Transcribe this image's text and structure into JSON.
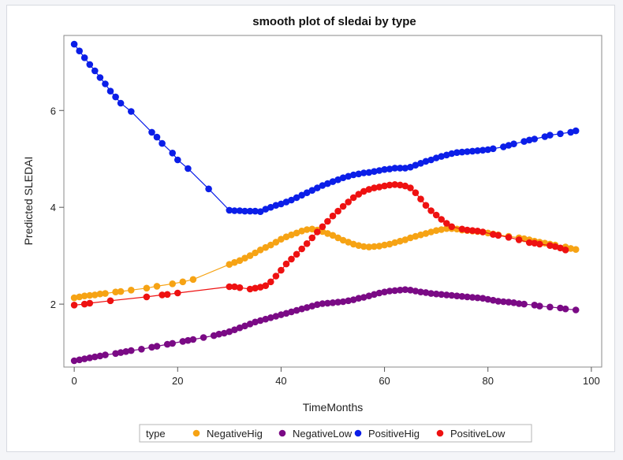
{
  "chart_data": {
    "type": "line",
    "title": "smooth plot of sledai by type",
    "xlabel": "TimeMonths",
    "ylabel": "Predicted SLEDAI",
    "xlim": [
      -2,
      102
    ],
    "ylim": [
      0.7,
      7.55
    ],
    "xticks": [
      "0",
      "20",
      "40",
      "60",
      "80",
      "100"
    ],
    "yticks": [
      "2",
      "4",
      "6"
    ],
    "legend_title": "type",
    "series": [
      {
        "name": "NegativeHig",
        "color": "#f6a314",
        "points": [
          [
            0,
            2.13
          ],
          [
            1,
            2.15
          ],
          [
            2,
            2.17
          ],
          [
            3,
            2.18
          ],
          [
            4,
            2.19
          ],
          [
            5,
            2.21
          ],
          [
            6,
            2.22
          ],
          [
            8,
            2.25
          ],
          [
            9,
            2.26
          ],
          [
            11,
            2.29
          ],
          [
            14,
            2.33
          ],
          [
            16,
            2.37
          ],
          [
            19,
            2.42
          ],
          [
            21,
            2.46
          ],
          [
            23,
            2.51
          ],
          [
            30,
            2.82
          ],
          [
            31,
            2.86
          ],
          [
            32,
            2.9
          ],
          [
            33,
            2.95
          ],
          [
            34,
            3.0
          ],
          [
            35,
            3.06
          ],
          [
            36,
            3.12
          ],
          [
            37,
            3.17
          ],
          [
            38,
            3.22
          ],
          [
            39,
            3.28
          ],
          [
            40,
            3.34
          ],
          [
            41,
            3.39
          ],
          [
            42,
            3.43
          ],
          [
            43,
            3.47
          ],
          [
            44,
            3.51
          ],
          [
            45,
            3.54
          ],
          [
            46,
            3.55
          ],
          [
            47,
            3.53
          ],
          [
            48,
            3.5
          ],
          [
            49,
            3.46
          ],
          [
            50,
            3.42
          ],
          [
            51,
            3.37
          ],
          [
            52,
            3.32
          ],
          [
            53,
            3.28
          ],
          [
            54,
            3.24
          ],
          [
            55,
            3.21
          ],
          [
            56,
            3.19
          ],
          [
            57,
            3.18
          ],
          [
            58,
            3.19
          ],
          [
            59,
            3.2
          ],
          [
            60,
            3.22
          ],
          [
            61,
            3.24
          ],
          [
            62,
            3.27
          ],
          [
            63,
            3.3
          ],
          [
            64,
            3.33
          ],
          [
            65,
            3.37
          ],
          [
            66,
            3.4
          ],
          [
            67,
            3.43
          ],
          [
            68,
            3.46
          ],
          [
            69,
            3.49
          ],
          [
            70,
            3.52
          ],
          [
            71,
            3.54
          ],
          [
            72,
            3.56
          ],
          [
            73,
            3.56
          ],
          [
            74,
            3.55
          ],
          [
            75,
            3.53
          ],
          [
            76,
            3.52
          ],
          [
            77,
            3.51
          ],
          [
            78,
            3.5
          ],
          [
            79,
            3.49
          ],
          [
            80,
            3.47
          ],
          [
            81,
            3.45
          ],
          [
            82,
            3.43
          ],
          [
            84,
            3.4
          ],
          [
            86,
            3.37
          ],
          [
            87,
            3.35
          ],
          [
            88,
            3.33
          ],
          [
            89,
            3.3
          ],
          [
            90,
            3.28
          ],
          [
            91,
            3.26
          ],
          [
            92,
            3.24
          ],
          [
            93,
            3.22
          ],
          [
            95,
            3.18
          ],
          [
            96,
            3.15
          ],
          [
            97,
            3.13
          ]
        ]
      },
      {
        "name": "NegativeLow",
        "color": "#7a0a85",
        "points": [
          [
            0,
            0.83
          ],
          [
            1,
            0.85
          ],
          [
            2,
            0.87
          ],
          [
            3,
            0.89
          ],
          [
            4,
            0.91
          ],
          [
            5,
            0.93
          ],
          [
            6,
            0.95
          ],
          [
            8,
            0.98
          ],
          [
            9,
            1.0
          ],
          [
            10,
            1.02
          ],
          [
            11,
            1.04
          ],
          [
            13,
            1.07
          ],
          [
            15,
            1.11
          ],
          [
            16,
            1.13
          ],
          [
            18,
            1.17
          ],
          [
            19,
            1.19
          ],
          [
            21,
            1.23
          ],
          [
            22,
            1.25
          ],
          [
            23,
            1.27
          ],
          [
            25,
            1.31
          ],
          [
            27,
            1.35
          ],
          [
            28,
            1.38
          ],
          [
            29,
            1.4
          ],
          [
            30,
            1.43
          ],
          [
            31,
            1.47
          ],
          [
            32,
            1.51
          ],
          [
            33,
            1.55
          ],
          [
            34,
            1.59
          ],
          [
            35,
            1.63
          ],
          [
            36,
            1.66
          ],
          [
            37,
            1.69
          ],
          [
            38,
            1.72
          ],
          [
            39,
            1.75
          ],
          [
            40,
            1.78
          ],
          [
            41,
            1.81
          ],
          [
            42,
            1.84
          ],
          [
            43,
            1.87
          ],
          [
            44,
            1.9
          ],
          [
            45,
            1.93
          ],
          [
            46,
            1.96
          ],
          [
            47,
            1.99
          ],
          [
            48,
            2.01
          ],
          [
            49,
            2.02
          ],
          [
            50,
            2.03
          ],
          [
            51,
            2.04
          ],
          [
            52,
            2.05
          ],
          [
            53,
            2.07
          ],
          [
            54,
            2.09
          ],
          [
            55,
            2.12
          ],
          [
            56,
            2.14
          ],
          [
            57,
            2.17
          ],
          [
            58,
            2.2
          ],
          [
            59,
            2.23
          ],
          [
            60,
            2.25
          ],
          [
            61,
            2.27
          ],
          [
            62,
            2.28
          ],
          [
            63,
            2.29
          ],
          [
            64,
            2.3
          ],
          [
            65,
            2.29
          ],
          [
            66,
            2.27
          ],
          [
            67,
            2.25
          ],
          [
            68,
            2.24
          ],
          [
            69,
            2.22
          ],
          [
            70,
            2.21
          ],
          [
            71,
            2.2
          ],
          [
            72,
            2.19
          ],
          [
            73,
            2.18
          ],
          [
            74,
            2.17
          ],
          [
            75,
            2.16
          ],
          [
            76,
            2.15
          ],
          [
            77,
            2.14
          ],
          [
            78,
            2.13
          ],
          [
            79,
            2.12
          ],
          [
            80,
            2.1
          ],
          [
            81,
            2.08
          ],
          [
            82,
            2.06
          ],
          [
            83,
            2.05
          ],
          [
            84,
            2.04
          ],
          [
            85,
            2.03
          ],
          [
            86,
            2.01
          ],
          [
            87,
            2.0
          ],
          [
            89,
            1.98
          ],
          [
            90,
            1.96
          ],
          [
            92,
            1.94
          ],
          [
            94,
            1.92
          ],
          [
            95,
            1.9
          ],
          [
            97,
            1.88
          ]
        ]
      },
      {
        "name": "PositiveHig",
        "color": "#0b1ee8",
        "points": [
          [
            0,
            7.37
          ],
          [
            1,
            7.23
          ],
          [
            2,
            7.09
          ],
          [
            3,
            6.95
          ],
          [
            4,
            6.82
          ],
          [
            5,
            6.68
          ],
          [
            6,
            6.55
          ],
          [
            7,
            6.4
          ],
          [
            8,
            6.28
          ],
          [
            9,
            6.15
          ],
          [
            11,
            5.98
          ],
          [
            15,
            5.55
          ],
          [
            16,
            5.45
          ],
          [
            17,
            5.32
          ],
          [
            19,
            5.12
          ],
          [
            20,
            4.98
          ],
          [
            22,
            4.8
          ],
          [
            26,
            4.38
          ],
          [
            30,
            3.94
          ],
          [
            31,
            3.93
          ],
          [
            32,
            3.93
          ],
          [
            33,
            3.92
          ],
          [
            34,
            3.92
          ],
          [
            35,
            3.92
          ],
          [
            36,
            3.91
          ],
          [
            37,
            3.96
          ],
          [
            38,
            4.0
          ],
          [
            39,
            4.04
          ],
          [
            40,
            4.07
          ],
          [
            41,
            4.11
          ],
          [
            42,
            4.15
          ],
          [
            43,
            4.2
          ],
          [
            44,
            4.25
          ],
          [
            45,
            4.3
          ],
          [
            46,
            4.35
          ],
          [
            47,
            4.4
          ],
          [
            48,
            4.45
          ],
          [
            49,
            4.49
          ],
          [
            50,
            4.53
          ],
          [
            51,
            4.57
          ],
          [
            52,
            4.61
          ],
          [
            53,
            4.64
          ],
          [
            54,
            4.67
          ],
          [
            55,
            4.69
          ],
          [
            56,
            4.71
          ],
          [
            57,
            4.72
          ],
          [
            58,
            4.74
          ],
          [
            59,
            4.76
          ],
          [
            60,
            4.78
          ],
          [
            61,
            4.79
          ],
          [
            62,
            4.81
          ],
          [
            63,
            4.81
          ],
          [
            64,
            4.81
          ],
          [
            65,
            4.83
          ],
          [
            66,
            4.87
          ],
          [
            67,
            4.91
          ],
          [
            68,
            4.95
          ],
          [
            69,
            4.98
          ],
          [
            70,
            5.02
          ],
          [
            71,
            5.05
          ],
          [
            72,
            5.08
          ],
          [
            73,
            5.11
          ],
          [
            74,
            5.13
          ],
          [
            75,
            5.14
          ],
          [
            76,
            5.15
          ],
          [
            77,
            5.16
          ],
          [
            78,
            5.17
          ],
          [
            79,
            5.18
          ],
          [
            80,
            5.19
          ],
          [
            81,
            5.21
          ],
          [
            83,
            5.25
          ],
          [
            84,
            5.28
          ],
          [
            85,
            5.31
          ],
          [
            87,
            5.36
          ],
          [
            88,
            5.39
          ],
          [
            89,
            5.41
          ],
          [
            91,
            5.46
          ],
          [
            92,
            5.49
          ],
          [
            94,
            5.52
          ],
          [
            96,
            5.55
          ],
          [
            97,
            5.58
          ]
        ]
      },
      {
        "name": "PositiveLow",
        "color": "#ee1111",
        "points": [
          [
            0,
            1.98
          ],
          [
            2,
            2.0
          ],
          [
            3,
            2.02
          ],
          [
            7,
            2.07
          ],
          [
            14,
            2.15
          ],
          [
            17,
            2.19
          ],
          [
            18,
            2.2
          ],
          [
            20,
            2.23
          ],
          [
            30,
            2.36
          ],
          [
            31,
            2.36
          ],
          [
            32,
            2.34
          ],
          [
            34,
            2.31
          ],
          [
            35,
            2.33
          ],
          [
            36,
            2.35
          ],
          [
            37,
            2.38
          ],
          [
            38,
            2.46
          ],
          [
            39,
            2.58
          ],
          [
            40,
            2.7
          ],
          [
            41,
            2.83
          ],
          [
            42,
            2.93
          ],
          [
            43,
            3.03
          ],
          [
            44,
            3.14
          ],
          [
            45,
            3.25
          ],
          [
            46,
            3.37
          ],
          [
            47,
            3.49
          ],
          [
            48,
            3.6
          ],
          [
            49,
            3.71
          ],
          [
            50,
            3.82
          ],
          [
            51,
            3.92
          ],
          [
            52,
            4.02
          ],
          [
            53,
            4.11
          ],
          [
            54,
            4.2
          ],
          [
            55,
            4.27
          ],
          [
            56,
            4.33
          ],
          [
            57,
            4.37
          ],
          [
            58,
            4.4
          ],
          [
            59,
            4.42
          ],
          [
            60,
            4.44
          ],
          [
            61,
            4.46
          ],
          [
            62,
            4.47
          ],
          [
            63,
            4.46
          ],
          [
            64,
            4.44
          ],
          [
            65,
            4.4
          ],
          [
            66,
            4.3
          ],
          [
            67,
            4.17
          ],
          [
            68,
            4.04
          ],
          [
            69,
            3.93
          ],
          [
            70,
            3.84
          ],
          [
            71,
            3.75
          ],
          [
            72,
            3.67
          ],
          [
            73,
            3.6
          ],
          [
            75,
            3.55
          ],
          [
            76,
            3.53
          ],
          [
            77,
            3.52
          ],
          [
            78,
            3.51
          ],
          [
            79,
            3.49
          ],
          [
            81,
            3.44
          ],
          [
            82,
            3.42
          ],
          [
            84,
            3.38
          ],
          [
            86,
            3.33
          ],
          [
            88,
            3.27
          ],
          [
            89,
            3.26
          ],
          [
            90,
            3.24
          ],
          [
            92,
            3.21
          ],
          [
            93,
            3.19
          ],
          [
            94,
            3.16
          ],
          [
            95,
            3.12
          ]
        ]
      }
    ]
  }
}
